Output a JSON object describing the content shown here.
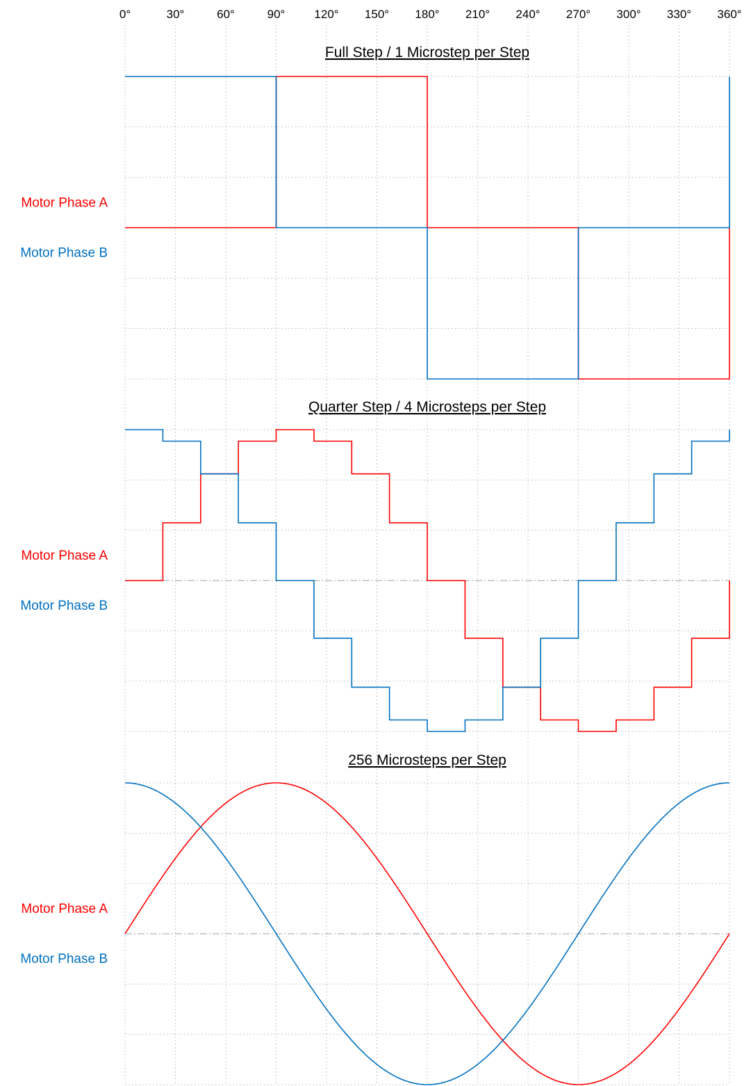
{
  "colors": {
    "phase_a": "#ff0000",
    "phase_b": "#0070c0",
    "grid": "#b8b8b8",
    "zero_line": "#a0a0a0"
  },
  "x_tick_labels": [
    "0°",
    "30°",
    "60°",
    "90°",
    "120°",
    "150°",
    "180°",
    "210°",
    "240°",
    "270°",
    "300°",
    "330°",
    "360°"
  ],
  "chart_data": [
    {
      "type": "line",
      "title_parts": [
        "Full Step",
        " / ",
        "1 Microstep per Step"
      ],
      "x": {
        "unit": "degrees",
        "range": [
          0,
          360
        ],
        "ticks": [
          0,
          30,
          60,
          90,
          120,
          150,
          180,
          210,
          240,
          270,
          300,
          330,
          360
        ]
      },
      "y": {
        "range": [
          -1,
          1
        ],
        "tick_labels_shown": false
      },
      "grid": true,
      "microsteps_per_step": 1,
      "step_shape": "held",
      "series": [
        {
          "name": "Motor Phase A",
          "color": "#ff0000",
          "x": [
            0,
            90,
            180,
            270,
            360
          ],
          "values": [
            0,
            1,
            0,
            -1,
            0
          ]
        },
        {
          "name": "Motor Phase B",
          "color": "#0070c0",
          "x": [
            0,
            90,
            180,
            270,
            360
          ],
          "values": [
            1,
            0,
            -1,
            0,
            1
          ]
        }
      ]
    },
    {
      "type": "line",
      "title_parts": [
        "Quarter Step",
        " / ",
        "4 Microsteps per Step"
      ],
      "x": {
        "unit": "degrees",
        "range": [
          0,
          360
        ],
        "ticks": [
          0,
          30,
          60,
          90,
          120,
          150,
          180,
          210,
          240,
          270,
          300,
          330,
          360
        ]
      },
      "y": {
        "range": [
          -1,
          1
        ],
        "tick_labels_shown": false
      },
      "grid": true,
      "microsteps_per_step": 4,
      "step_shape": "held",
      "series": [
        {
          "name": "Motor Phase A",
          "color": "#ff0000",
          "x": [
            0,
            22.5,
            45,
            67.5,
            90,
            112.5,
            135,
            157.5,
            180,
            202.5,
            225,
            247.5,
            270,
            292.5,
            315,
            337.5,
            360
          ],
          "values": [
            0,
            0.383,
            0.707,
            0.924,
            1,
            0.924,
            0.707,
            0.383,
            0,
            -0.383,
            -0.707,
            -0.924,
            -1,
            -0.924,
            -0.707,
            -0.383,
            0
          ]
        },
        {
          "name": "Motor Phase B",
          "color": "#0070c0",
          "x": [
            0,
            22.5,
            45,
            67.5,
            90,
            112.5,
            135,
            157.5,
            180,
            202.5,
            225,
            247.5,
            270,
            292.5,
            315,
            337.5,
            360
          ],
          "values": [
            1,
            0.924,
            0.707,
            0.383,
            0,
            -0.383,
            -0.707,
            -0.924,
            -1,
            -0.924,
            -0.707,
            -0.383,
            0,
            0.383,
            0.707,
            0.924,
            1
          ]
        }
      ]
    },
    {
      "type": "line",
      "title_parts": [
        "256 Microsteps per Step"
      ],
      "x": {
        "unit": "degrees",
        "range": [
          0,
          360
        ],
        "ticks": [
          0,
          30,
          60,
          90,
          120,
          150,
          180,
          210,
          240,
          270,
          300,
          330,
          360
        ]
      },
      "y": {
        "range": [
          -1,
          1
        ],
        "tick_labels_shown": false
      },
      "grid": true,
      "microsteps_per_step": 256,
      "step_shape": "smooth",
      "series": [
        {
          "name": "Motor Phase A",
          "color": "#ff0000",
          "x": [
            0,
            30,
            60,
            90,
            120,
            150,
            180,
            210,
            240,
            270,
            300,
            330,
            360
          ],
          "values": [
            0,
            0.5,
            0.866,
            1,
            0.866,
            0.5,
            0,
            -0.5,
            -0.866,
            -1,
            -0.866,
            -0.5,
            0
          ]
        },
        {
          "name": "Motor Phase B",
          "color": "#0070c0",
          "x": [
            0,
            30,
            60,
            90,
            120,
            150,
            180,
            210,
            240,
            270,
            300,
            330,
            360
          ],
          "values": [
            1,
            0.866,
            0.5,
            0,
            -0.5,
            -0.866,
            -1,
            -0.866,
            -0.5,
            0,
            0.5,
            0.866,
            1
          ]
        }
      ]
    }
  ]
}
